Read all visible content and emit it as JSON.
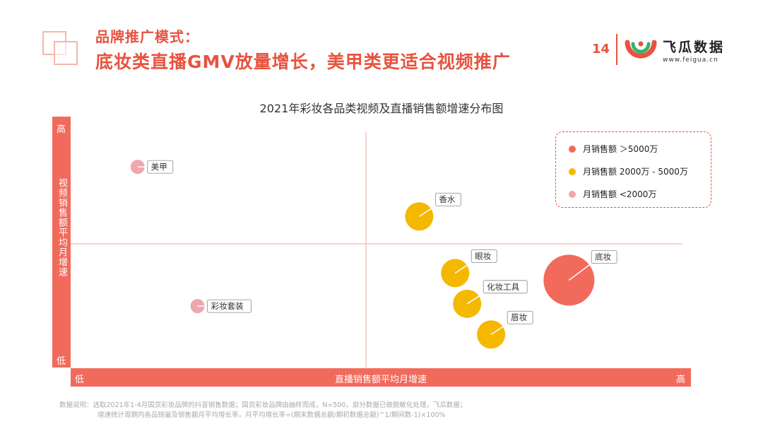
{
  "header": {
    "title_line1": "品牌推广模式：",
    "title_line2": "底妆类直播GMV放量增长，美甲类更适合视频推广",
    "page_number": "14",
    "logo_text": "飞瓜数据",
    "logo_url": "www.feigua.cn"
  },
  "colors": {
    "accent": "#e8533f",
    "band": "#f26a5c",
    "large": "#f26a5c",
    "medium": "#f5b800",
    "small": "#f0a6ae"
  },
  "chart_data": {
    "type": "scatter",
    "title": "2021年彩妆各品类视频及直播销售额增速分布图",
    "xlabel": "直播销售额平均月增速",
    "ylabel": "视频销售额平均月增速",
    "x_low": "低",
    "x_high": "高",
    "y_low": "低",
    "y_high": "高",
    "xlim": [
      0,
      100
    ],
    "ylim": [
      0,
      100
    ],
    "legend": {
      "position": "top-right",
      "entries": [
        {
          "key": "large",
          "label": "月销售额 ＞5000万"
        },
        {
          "key": "medium",
          "label": "月销售额 2000万 - 5000万"
        },
        {
          "key": "small",
          "label": "月销售额 <2000万"
        }
      ]
    },
    "points": [
      {
        "name": "美甲",
        "x": 10,
        "y": 85,
        "size": "small"
      },
      {
        "name": "彩妆套装",
        "x": 20,
        "y": 26,
        "size": "small"
      },
      {
        "name": "香水",
        "x": 57,
        "y": 64,
        "size": "medium"
      },
      {
        "name": "眼妆",
        "x": 63,
        "y": 40,
        "size": "medium"
      },
      {
        "name": "化妆工具",
        "x": 65,
        "y": 27,
        "size": "medium"
      },
      {
        "name": "唇妆",
        "x": 69,
        "y": 14,
        "size": "medium"
      },
      {
        "name": "底妆",
        "x": 82,
        "y": 37,
        "size": "large"
      }
    ]
  },
  "footnote": {
    "line1": "数据说明：选取2021年1-4月国货彩妆品牌的抖音销售数据；国货彩妆品牌由抽样而成，N=500，部分数据已做脱敏化处理，飞瓜数据；",
    "line2": "增速统计周期内各品销量及销售额月平均增长率，月平均增长率=(期末数据总额/期初数据总额)^1/期间数-1)×100%"
  }
}
